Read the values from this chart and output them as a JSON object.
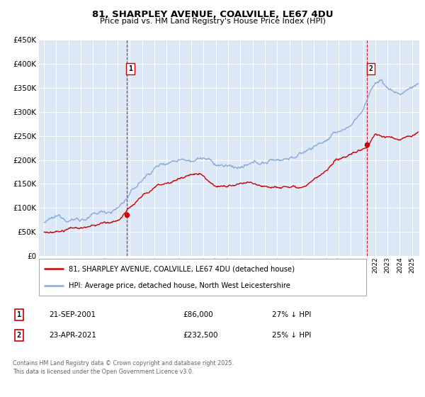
{
  "title": "81, SHARPLEY AVENUE, COALVILLE, LE67 4DU",
  "subtitle": "Price paid vs. HM Land Registry's House Price Index (HPI)",
  "legend_line1": "81, SHARPLEY AVENUE, COALVILLE, LE67 4DU (detached house)",
  "legend_line2": "HPI: Average price, detached house, North West Leicestershire",
  "marker1_date": "21-SEP-2001",
  "marker1_price": "£86,000",
  "marker1_hpi": "27% ↓ HPI",
  "marker2_date": "23-APR-2021",
  "marker2_price": "£232,500",
  "marker2_hpi": "25% ↓ HPI",
  "footer": "Contains HM Land Registry data © Crown copyright and database right 2025.\nThis data is licensed under the Open Government Licence v3.0.",
  "red_color": "#cc0000",
  "blue_color": "#88aadd",
  "marker1_x_year": 2001.72,
  "marker2_x_year": 2021.31,
  "marker1_red_y": 86000,
  "marker2_red_y": 232500,
  "xlim_left": 1994.6,
  "xlim_right": 2025.6,
  "ylim_bottom": 0,
  "ylim_top": 450000,
  "yticks": [
    0,
    50000,
    100000,
    150000,
    200000,
    250000,
    300000,
    350000,
    400000,
    450000
  ],
  "plot_bg_color": "#dce8f5",
  "fig_bg_color": "#ffffff"
}
